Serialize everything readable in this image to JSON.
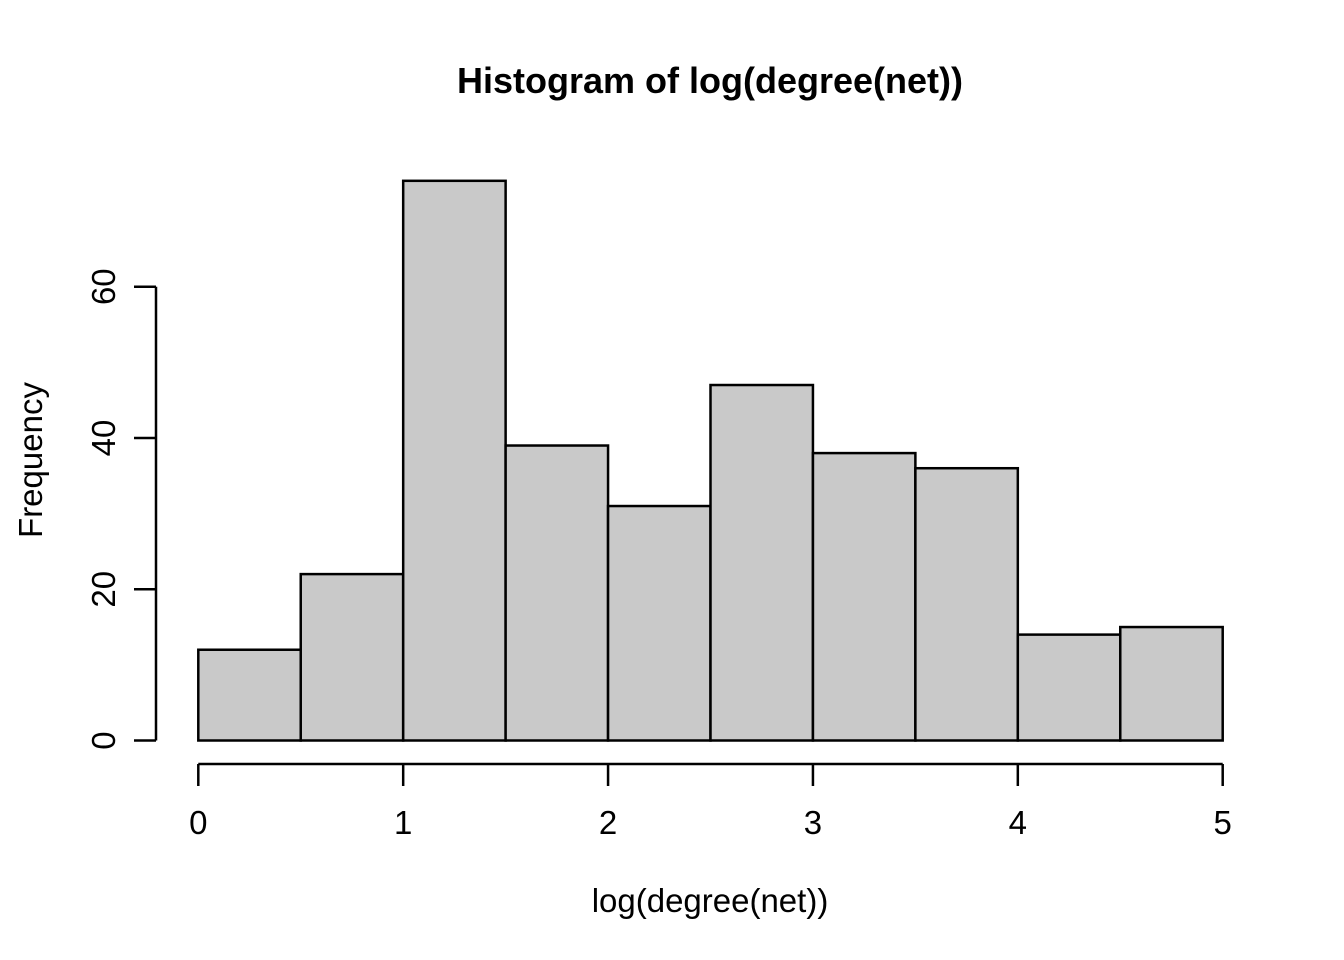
{
  "chart_data": {
    "type": "bar",
    "chart_style": "r-base-histogram",
    "title": "Histogram of log(degree(net))",
    "xlabel": "log(degree(net))",
    "ylabel": "Frequency",
    "bin_edges": [
      0,
      0.5,
      1.0,
      1.5,
      2.0,
      2.5,
      3.0,
      3.5,
      4.0,
      4.5,
      5.0
    ],
    "values": [
      12,
      22,
      74,
      39,
      31,
      47,
      38,
      36,
      14,
      15
    ],
    "x_ticks": [
      0,
      1,
      2,
      3,
      4,
      5
    ],
    "y_ticks": [
      0,
      20,
      40,
      60
    ],
    "xlim": [
      0,
      5
    ],
    "ylim": [
      0,
      74
    ],
    "grid": false,
    "legend": "none",
    "colors": {
      "bar_fill": "#C9C9C9",
      "bar_stroke": "#000000",
      "axis": "#000000",
      "text": "#000000",
      "background": "#FFFFFF"
    }
  }
}
